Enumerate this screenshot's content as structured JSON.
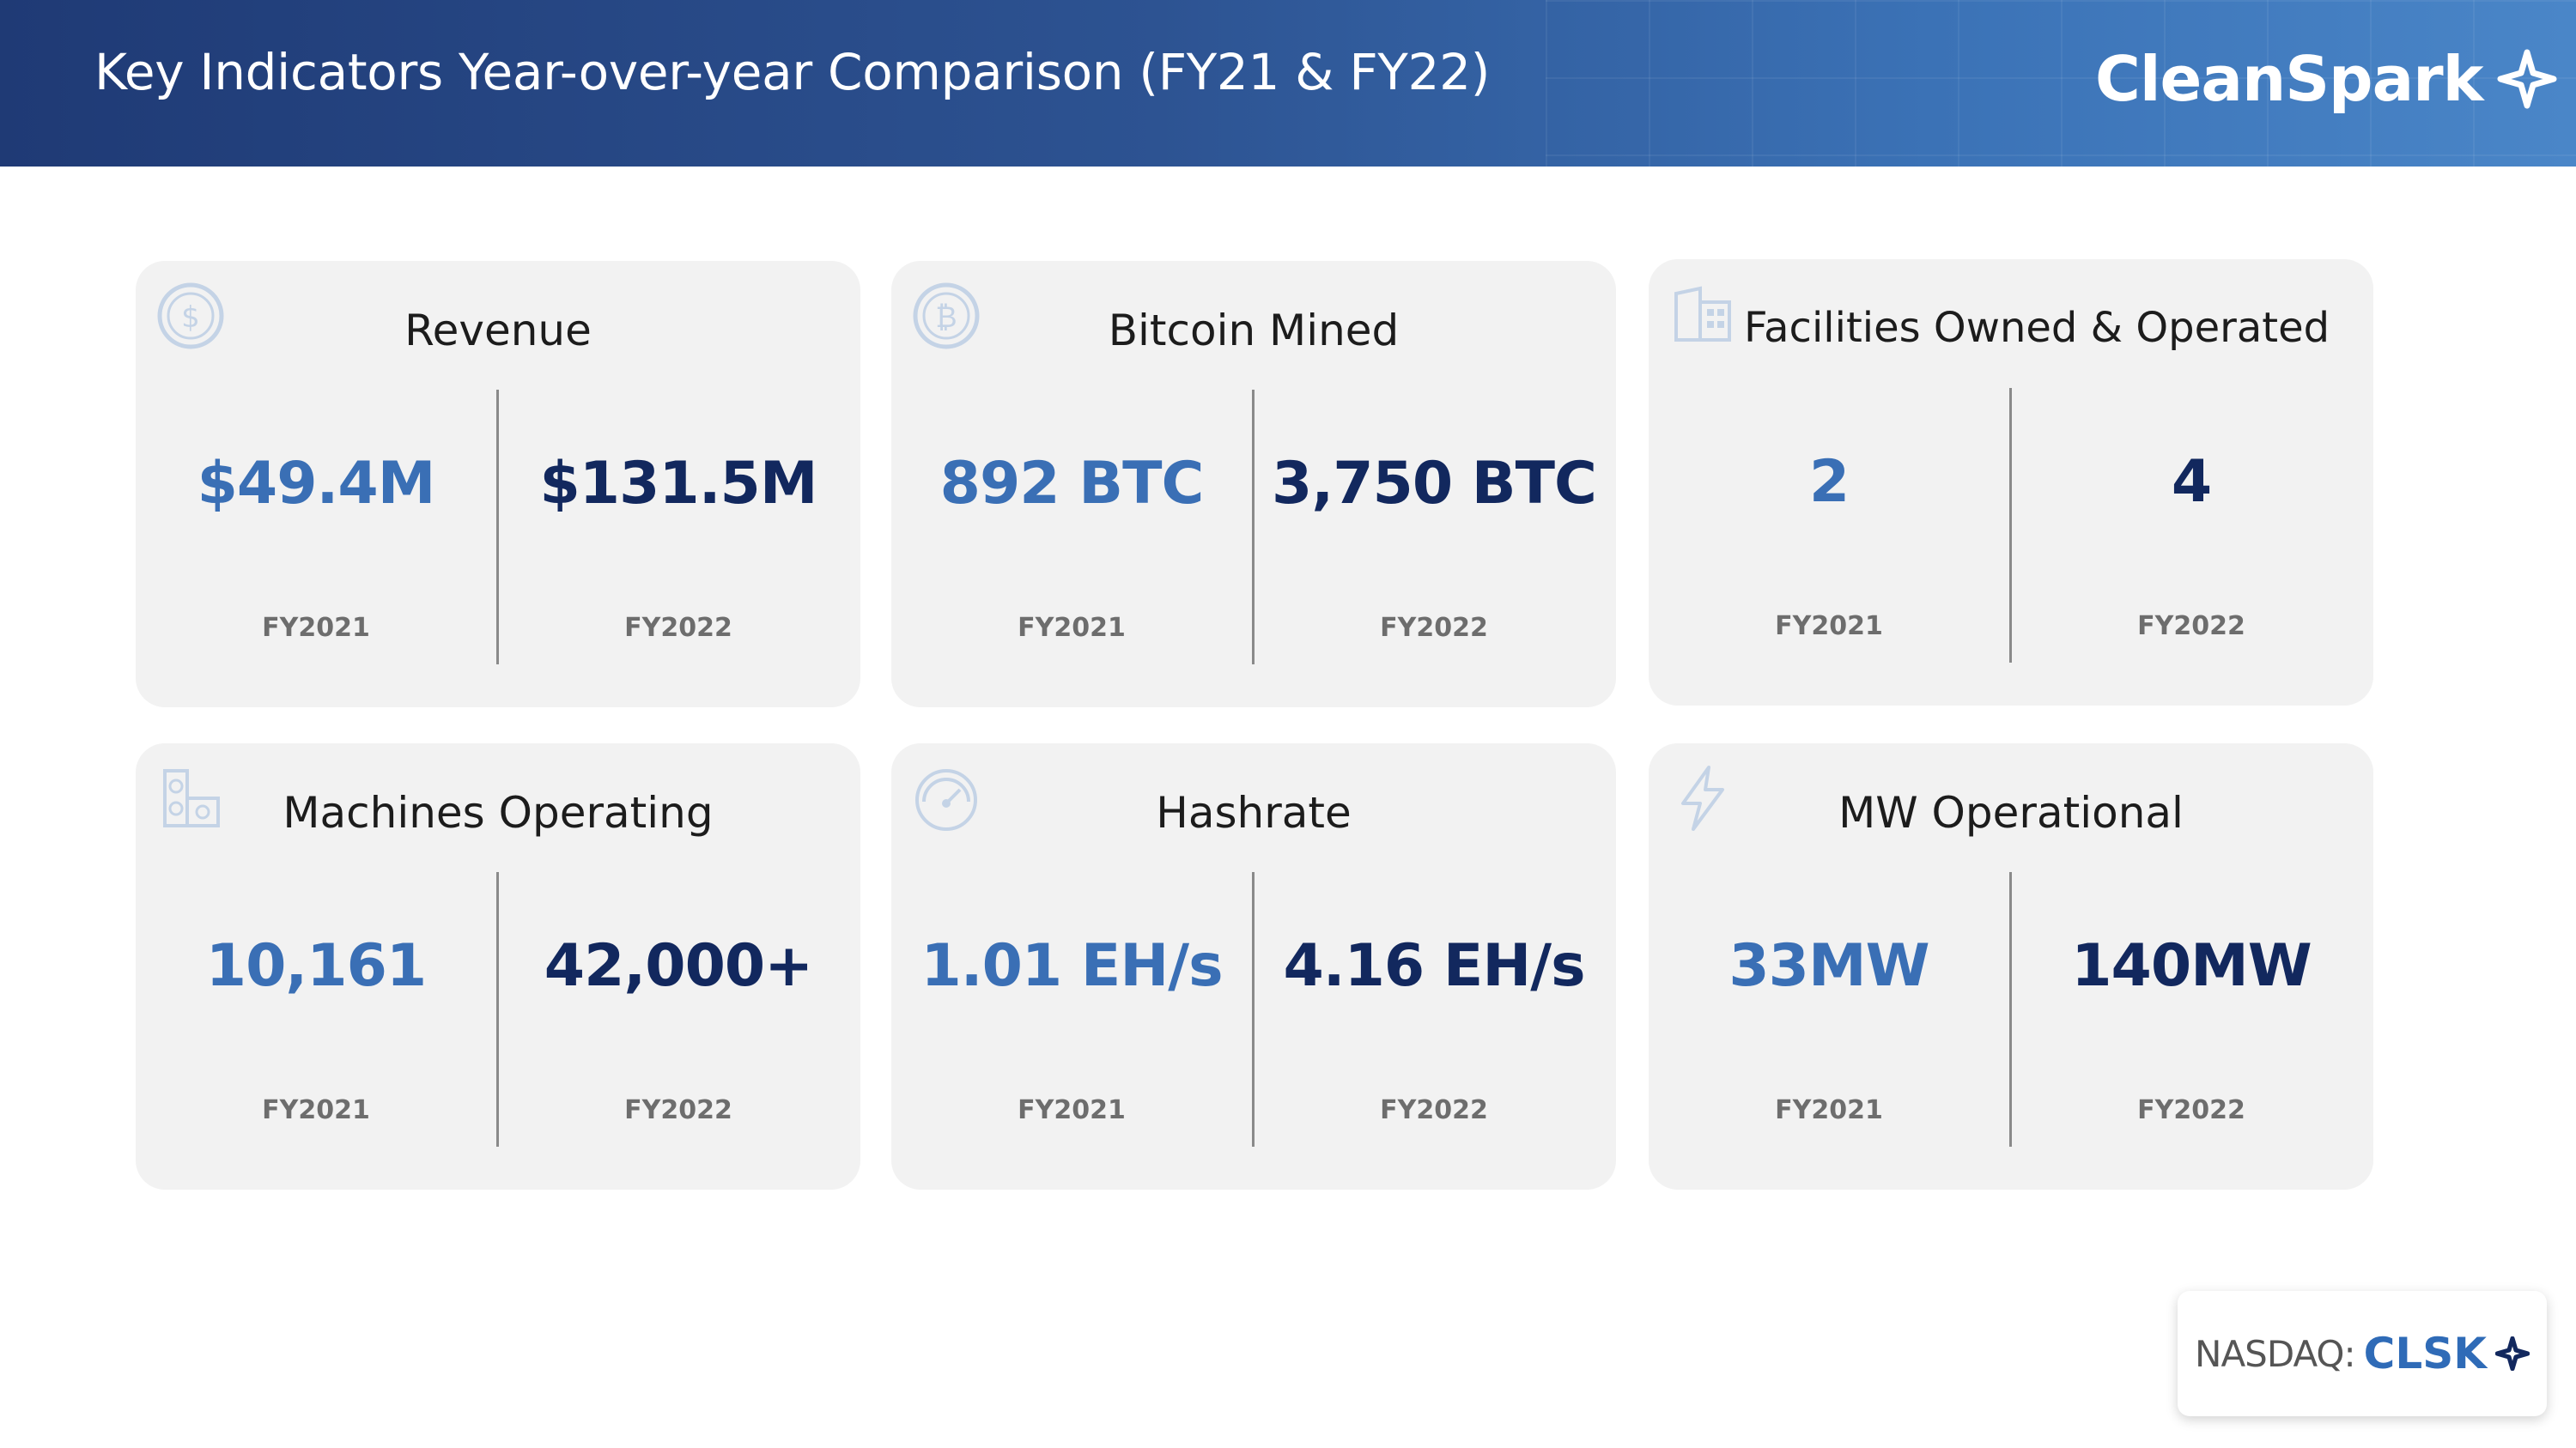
{
  "header": {
    "title": "Key Indicators Year-over-year Comparison (FY21 & FY22)",
    "brand": "CleanSpark",
    "brand_icon": "spark-star-icon"
  },
  "colors": {
    "header_start": "#1f3a75",
    "header_end": "#4a86c8",
    "fy2021_value": "#3a6fb5",
    "fy2022_value": "#12285e",
    "card_background": "#f2f2f2",
    "year_label": "#6d6d6d"
  },
  "cards": [
    {
      "title": "Revenue",
      "icon": "dollar-coin-icon",
      "fy2021_value": "$49.4M",
      "fy2021_label": "FY2021",
      "fy2022_value": "$131.5M",
      "fy2022_label": "FY2022"
    },
    {
      "title": "Bitcoin Mined",
      "icon": "bitcoin-coin-icon",
      "fy2021_value": "892 BTC",
      "fy2021_label": "FY2021",
      "fy2022_value": "3,750 BTC",
      "fy2022_label": "FY2022"
    },
    {
      "title": "Facilities Owned & Operated",
      "icon": "building-icon",
      "fy2021_value": "2",
      "fy2021_label": "FY2021",
      "fy2022_value": "4",
      "fy2022_label": "FY2022"
    },
    {
      "title": "Machines Operating",
      "icon": "mining-machine-icon",
      "fy2021_value": "10,161",
      "fy2021_label": "FY2021",
      "fy2022_value": "42,000+",
      "fy2022_label": "FY2022"
    },
    {
      "title": "Hashrate",
      "icon": "speedometer-icon",
      "fy2021_value": "1.01 EH/s",
      "fy2021_label": "FY2021",
      "fy2022_value": "4.16 EH/s",
      "fy2022_label": "FY2022"
    },
    {
      "title": "MW Operational",
      "icon": "lightning-bolt-icon",
      "fy2021_value": "33MW",
      "fy2021_label": "FY2021",
      "fy2022_value": "140MW",
      "fy2022_label": "FY2022"
    }
  ],
  "ticker": {
    "exchange": "NASDAQ:",
    "symbol": "CLSK",
    "icon": "spark-star-icon"
  }
}
